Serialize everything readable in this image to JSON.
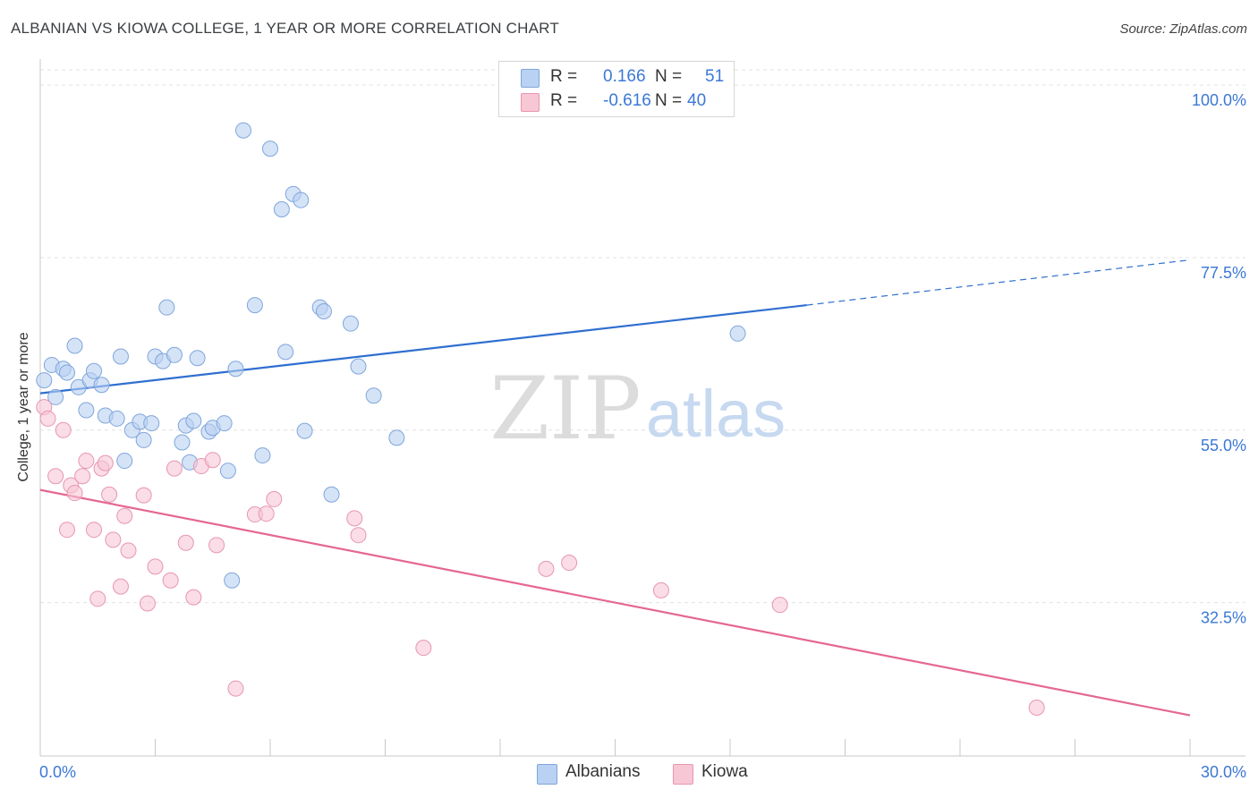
{
  "title": "ALBANIAN VS KIOWA COLLEGE, 1 YEAR OR MORE CORRELATION CHART",
  "source": "Source: ZipAtlas.com",
  "watermark": {
    "zip": "ZIP",
    "atlas": "atlas"
  },
  "legend": {
    "r_label": "R =",
    "n_label": "N =",
    "rows": [
      {
        "r": "0.166",
        "n": "51"
      },
      {
        "r": "-0.616",
        "n": "40"
      }
    ]
  },
  "bottom_legend": [
    "Albanians",
    "Kiowa"
  ],
  "colors": {
    "albanians_fill": "#b9d1f2",
    "albanians_stroke": "#7fa6dc",
    "albanians_line": "#2f6fd0",
    "kiowa_fill": "#f7c7d5",
    "kiowa_stroke": "#e896b0",
    "kiowa_line": "#e5678f",
    "tick_label": "#3b78d6"
  },
  "chart_data": {
    "type": "scatter",
    "title": "ALBANIAN VS KIOWA COLLEGE, 1 YEAR OR MORE CORRELATION CHART",
    "xlabel": "",
    "ylabel": "College, 1 year or more",
    "xlim": [
      0,
      30
    ],
    "ylim": [
      12.5,
      102
    ],
    "x_tick_labels": [
      "0.0%",
      "30.0%"
    ],
    "y_ticks": [
      32.5,
      55.0,
      77.5,
      100.0
    ],
    "y_tick_labels": [
      "32.5%",
      "55.0%",
      "77.5%",
      "100.0%"
    ],
    "grid": true,
    "series": [
      {
        "name": "Albanians",
        "R": 0.166,
        "N": 51,
        "trend": {
          "x0": 0,
          "y0": 59.8,
          "x1": 20.0,
          "y1": 71.3,
          "dashed_to_x": 30,
          "dashed_to_y": 77.2
        },
        "points": [
          [
            0.1,
            61.5
          ],
          [
            0.3,
            63.5
          ],
          [
            0.4,
            59.3
          ],
          [
            0.6,
            63.0
          ],
          [
            0.7,
            62.5
          ],
          [
            0.9,
            66.0
          ],
          [
            1.0,
            60.6
          ],
          [
            1.2,
            57.6
          ],
          [
            1.3,
            61.5
          ],
          [
            1.4,
            62.7
          ],
          [
            1.6,
            60.9
          ],
          [
            1.7,
            56.9
          ],
          [
            2.0,
            56.5
          ],
          [
            2.1,
            64.6
          ],
          [
            2.2,
            51.0
          ],
          [
            2.4,
            55.0
          ],
          [
            2.6,
            56.1
          ],
          [
            2.7,
            53.7
          ],
          [
            2.9,
            55.9
          ],
          [
            3.0,
            64.6
          ],
          [
            3.2,
            64.0
          ],
          [
            3.3,
            71.0
          ],
          [
            3.5,
            64.8
          ],
          [
            3.7,
            53.4
          ],
          [
            3.8,
            55.6
          ],
          [
            3.9,
            50.8
          ],
          [
            4.0,
            56.2
          ],
          [
            4.1,
            64.4
          ],
          [
            4.4,
            54.8
          ],
          [
            4.5,
            55.3
          ],
          [
            4.8,
            55.9
          ],
          [
            4.9,
            49.7
          ],
          [
            5.1,
            63.0
          ],
          [
            5.3,
            94.1
          ],
          [
            5.6,
            71.3
          ],
          [
            5.8,
            51.7
          ],
          [
            6.0,
            91.7
          ],
          [
            6.3,
            83.8
          ],
          [
            6.4,
            65.2
          ],
          [
            6.6,
            85.8
          ],
          [
            6.8,
            85.0
          ],
          [
            6.9,
            54.9
          ],
          [
            7.3,
            71.0
          ],
          [
            7.4,
            70.5
          ],
          [
            7.6,
            46.6
          ],
          [
            8.1,
            68.9
          ],
          [
            8.3,
            63.3
          ],
          [
            8.7,
            59.5
          ],
          [
            9.3,
            54.0
          ],
          [
            5.0,
            35.4
          ],
          [
            18.2,
            67.6
          ]
        ]
      },
      {
        "name": "Kiowa",
        "R": -0.616,
        "N": 40,
        "trend": {
          "x0": 0,
          "y0": 47.2,
          "x1": 30,
          "y1": 17.8
        },
        "points": [
          [
            0.1,
            58.0
          ],
          [
            0.2,
            56.5
          ],
          [
            0.4,
            49.0
          ],
          [
            0.6,
            55.0
          ],
          [
            0.7,
            42.0
          ],
          [
            0.8,
            47.8
          ],
          [
            0.9,
            46.8
          ],
          [
            1.1,
            49.0
          ],
          [
            1.2,
            51.0
          ],
          [
            1.4,
            42.0
          ],
          [
            1.5,
            33.0
          ],
          [
            1.6,
            50.0
          ],
          [
            1.7,
            50.7
          ],
          [
            1.8,
            46.6
          ],
          [
            1.9,
            40.7
          ],
          [
            2.1,
            34.6
          ],
          [
            2.2,
            43.8
          ],
          [
            2.3,
            39.3
          ],
          [
            2.7,
            46.5
          ],
          [
            2.8,
            32.4
          ],
          [
            3.0,
            37.2
          ],
          [
            3.4,
            35.4
          ],
          [
            3.5,
            50.0
          ],
          [
            3.8,
            40.3
          ],
          [
            4.0,
            33.2
          ],
          [
            4.2,
            50.3
          ],
          [
            4.5,
            51.1
          ],
          [
            4.6,
            40.0
          ],
          [
            5.1,
            21.3
          ],
          [
            5.6,
            44.0
          ],
          [
            5.9,
            44.1
          ],
          [
            6.1,
            46.0
          ],
          [
            8.2,
            43.5
          ],
          [
            8.3,
            41.3
          ],
          [
            10.0,
            26.6
          ],
          [
            13.2,
            36.9
          ],
          [
            13.8,
            37.7
          ],
          [
            16.2,
            34.1
          ],
          [
            19.3,
            32.2
          ],
          [
            26.0,
            18.8
          ]
        ]
      }
    ]
  }
}
